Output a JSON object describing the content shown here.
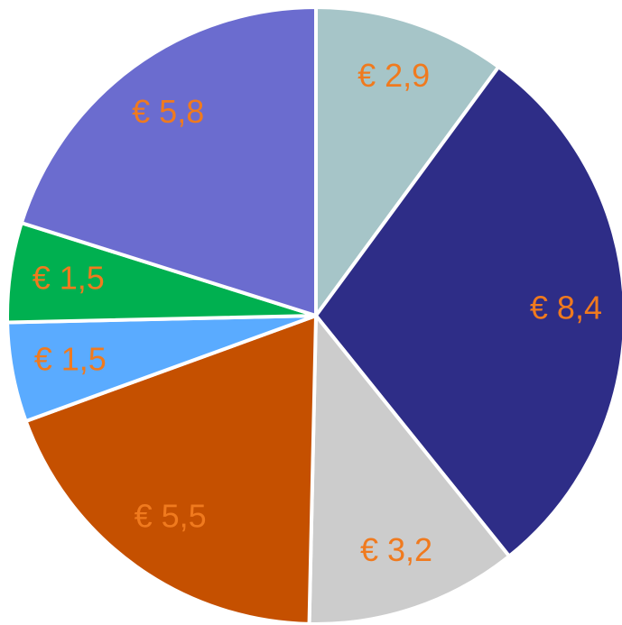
{
  "chart_data": {
    "type": "pie",
    "categories": [
      null,
      null,
      null,
      null,
      null,
      null,
      null
    ],
    "values": [
      2.9,
      8.4,
      3.2,
      5.5,
      1.5,
      1.5,
      5.8
    ],
    "value_labels": [
      "€ 2,9",
      "€ 8,4",
      "€ 3,2",
      "€ 5,5",
      "€ 1,5",
      "€ 1,5",
      "€ 5,8"
    ],
    "colors": [
      "#a6c5c8",
      "#2e2d87",
      "#cccccc",
      "#c55000",
      "#5aabff",
      "#00b050",
      "#6b6ccf"
    ],
    "label_color": "#f07a1e"
  }
}
